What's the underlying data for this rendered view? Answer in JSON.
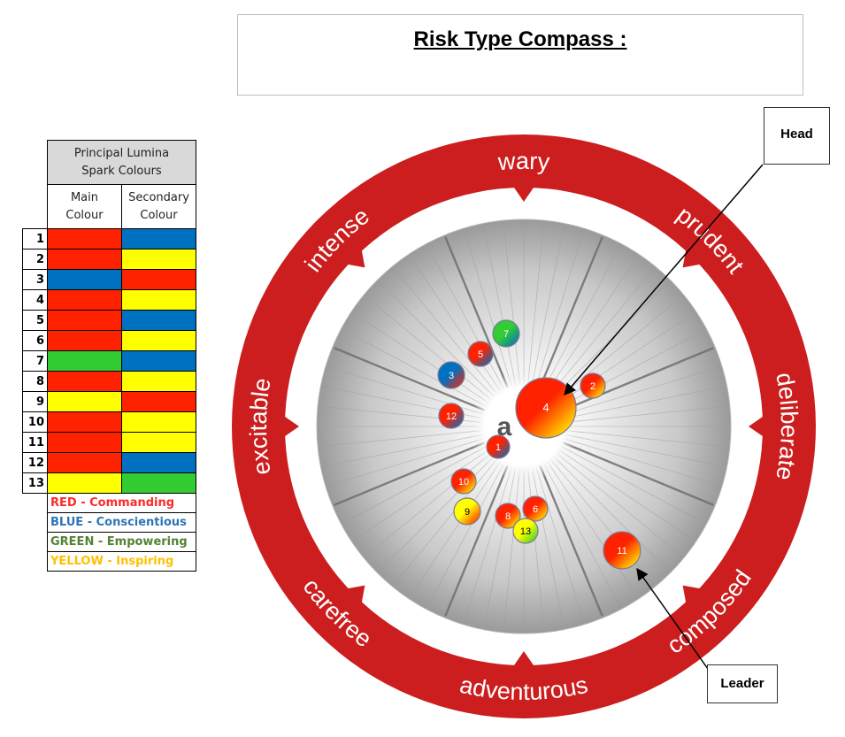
{
  "title": "Risk Type Compass :",
  "legend": {
    "header": [
      "Principal Lumina",
      "Spark Colours"
    ],
    "columns": [
      [
        "Main",
        "Colour"
      ],
      [
        "Secondary",
        "Colour"
      ]
    ],
    "rows": [
      {
        "n": "1",
        "main": "#ff2200",
        "secondary": "#0070c0"
      },
      {
        "n": "2",
        "main": "#ff2200",
        "secondary": "#ffff00"
      },
      {
        "n": "3",
        "main": "#0070c0",
        "secondary": "#ff2200"
      },
      {
        "n": "4",
        "main": "#ff2200",
        "secondary": "#ffff00"
      },
      {
        "n": "5",
        "main": "#ff2200",
        "secondary": "#0070c0"
      },
      {
        "n": "6",
        "main": "#ff2200",
        "secondary": "#ffff00"
      },
      {
        "n": "7",
        "main": "#33cc33",
        "secondary": "#0070c0"
      },
      {
        "n": "8",
        "main": "#ff2200",
        "secondary": "#ffff00"
      },
      {
        "n": "9",
        "main": "#ffff00",
        "secondary": "#ff2200"
      },
      {
        "n": "10",
        "main": "#ff2200",
        "secondary": "#ffff00"
      },
      {
        "n": "11",
        "main": "#ff2200",
        "secondary": "#ffff00"
      },
      {
        "n": "12",
        "main": "#ff2200",
        "secondary": "#0070c0"
      },
      {
        "n": "13",
        "main": "#ffff00",
        "secondary": "#33cc33"
      }
    ],
    "key": [
      {
        "text": "RED - Commanding",
        "color": "#ff2a2a"
      },
      {
        "text": "BLUE - Conscientious",
        "color": "#2e75b6"
      },
      {
        "text": "GREEN - Empowering",
        "color": "#548235"
      },
      {
        "text": "YELLOW - Inspiring",
        "color": "#ffc000"
      }
    ]
  },
  "compass": {
    "ring_color": "#cc1e1e",
    "ring_labels": [
      "wary",
      "prudent",
      "deliberate",
      "composed",
      "adventurous",
      "carefree",
      "excitable",
      "intense"
    ],
    "center_letter": "a",
    "markers": [
      {
        "n": "1",
        "main": "#ff2200",
        "secondary": "#0070c0"
      },
      {
        "n": "2",
        "main": "#ff2200",
        "secondary": "#ffff00"
      },
      {
        "n": "3",
        "main": "#0070c0",
        "secondary": "#ff2200"
      },
      {
        "n": "4",
        "main": "#ff2200",
        "secondary": "#ffff00"
      },
      {
        "n": "5",
        "main": "#ff2200",
        "secondary": "#0070c0"
      },
      {
        "n": "6",
        "main": "#ff2200",
        "secondary": "#ffff00"
      },
      {
        "n": "7",
        "main": "#33cc33",
        "secondary": "#0070c0"
      },
      {
        "n": "8",
        "main": "#ff2200",
        "secondary": "#ffff00"
      },
      {
        "n": "9",
        "main": "#ffff00",
        "secondary": "#ff2200"
      },
      {
        "n": "10",
        "main": "#ff2200",
        "secondary": "#ffff00"
      },
      {
        "n": "11",
        "main": "#ff2200",
        "secondary": "#ffff00"
      },
      {
        "n": "12",
        "main": "#ff2200",
        "secondary": "#0070c0"
      },
      {
        "n": "13",
        "main": "#ffff00",
        "secondary": "#33cc33"
      }
    ]
  },
  "callouts": {
    "head": "Head",
    "leader": "Leader"
  }
}
